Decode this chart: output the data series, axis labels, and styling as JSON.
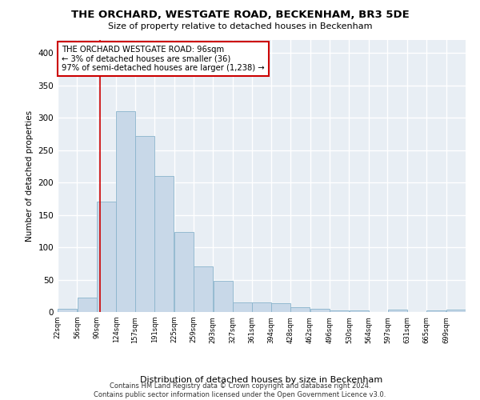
{
  "title": "THE ORCHARD, WESTGATE ROAD, BECKENHAM, BR3 5DE",
  "subtitle": "Size of property relative to detached houses in Beckenham",
  "xlabel": "Distribution of detached houses by size in Beckenham",
  "ylabel": "Number of detached properties",
  "bar_color": "#c8d8e8",
  "bar_edge_color": "#8ab4cc",
  "background_color": "#e8eef4",
  "grid_color": "#ffffff",
  "vline_x": 96,
  "vline_color": "#cc0000",
  "annotation_text": "THE ORCHARD WESTGATE ROAD: 96sqm\n← 3% of detached houses are smaller (36)\n97% of semi-detached houses are larger (1,238) →",
  "annotation_color": "#cc0000",
  "footer_line1": "Contains HM Land Registry data © Crown copyright and database right 2024.",
  "footer_line2": "Contains public sector information licensed under the Open Government Licence v3.0.",
  "bin_labels": [
    "22sqm",
    "56sqm",
    "90sqm",
    "124sqm",
    "157sqm",
    "191sqm",
    "225sqm",
    "259sqm",
    "293sqm",
    "327sqm",
    "361sqm",
    "394sqm",
    "428sqm",
    "462sqm",
    "496sqm",
    "530sqm",
    "564sqm",
    "597sqm",
    "631sqm",
    "665sqm",
    "699sqm"
  ],
  "bin_edges": [
    22,
    56,
    90,
    124,
    157,
    191,
    225,
    259,
    293,
    327,
    361,
    394,
    428,
    462,
    496,
    530,
    564,
    597,
    631,
    665,
    699,
    733
  ],
  "bar_heights": [
    5,
    22,
    170,
    310,
    272,
    210,
    124,
    70,
    48,
    15,
    15,
    14,
    8,
    5,
    3,
    2,
    0,
    4,
    0,
    3,
    4
  ],
  "ylim": [
    0,
    420
  ],
  "yticks": [
    0,
    50,
    100,
    150,
    200,
    250,
    300,
    350,
    400
  ]
}
